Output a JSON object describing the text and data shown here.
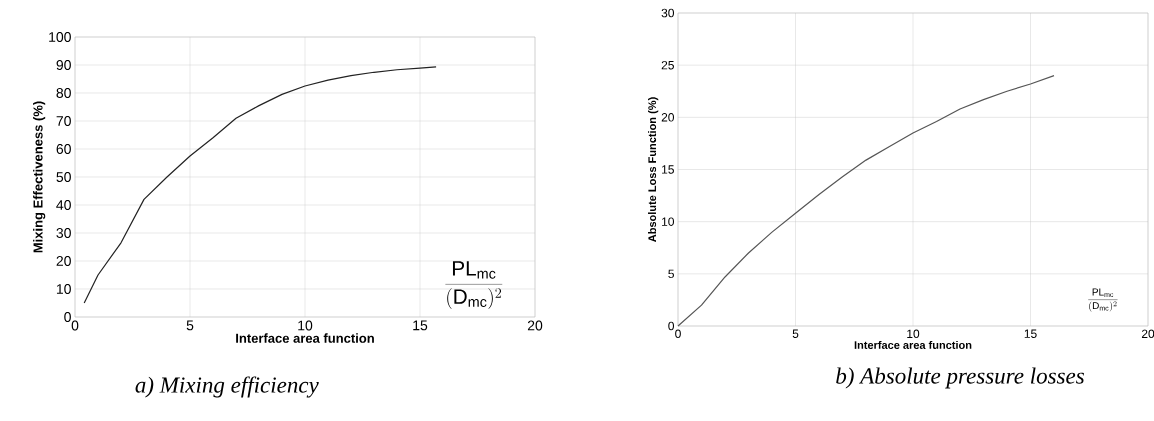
{
  "chart_data": [
    {
      "type": "line",
      "xlabel": "Interface area function",
      "ylabel": "Mixing Effectiveness (%)",
      "xlim": [
        0,
        20
      ],
      "xticks": [
        0,
        5,
        10,
        15,
        20
      ],
      "ylim": [
        0,
        100
      ],
      "yticks": [
        0,
        10,
        20,
        30,
        40,
        50,
        60,
        70,
        80,
        90,
        100
      ],
      "grid": true,
      "color": "#222222",
      "x": [
        0.4,
        1,
        2,
        3,
        4,
        5,
        6,
        7,
        8,
        9,
        10,
        11,
        12,
        13,
        14,
        15,
        15.7
      ],
      "values": [
        5,
        15,
        26.5,
        42,
        50,
        57.5,
        64,
        71,
        75.5,
        79.5,
        82.5,
        84.6,
        86.2,
        87.4,
        88.3,
        88.9,
        89.3
      ],
      "annotations": [
        "\\frac{\\mathrm{PL_{mc}}}{(\\mathrm{D_{mc}})^2}",
        "a)   Mixing efficiency"
      ]
    },
    {
      "type": "line",
      "xlabel": "Interface area function",
      "ylabel": "Absolute Loss Function (%)",
      "xlim": [
        0,
        20
      ],
      "xticks": [
        0,
        5,
        10,
        15,
        20
      ],
      "ylim": [
        0,
        30
      ],
      "yticks": [
        0,
        5,
        10,
        15,
        20,
        25,
        30
      ],
      "grid": true,
      "color": "#555555",
      "x": [
        0,
        1,
        2,
        3,
        4,
        5,
        6,
        7,
        8,
        9,
        10,
        11,
        12,
        13,
        14,
        15,
        16
      ],
      "values": [
        0,
        2,
        4.7,
        7,
        9,
        10.8,
        12.6,
        14.3,
        15.9,
        17.2,
        18.5,
        19.6,
        20.8,
        21.7,
        22.5,
        23.2,
        24
      ],
      "annotations": [
        "\\frac{\\mathrm{PL_{mc}}}{(\\mathrm{D_{mc}})^2}",
        "b) Absolute pressure losses"
      ]
    }
  ]
}
